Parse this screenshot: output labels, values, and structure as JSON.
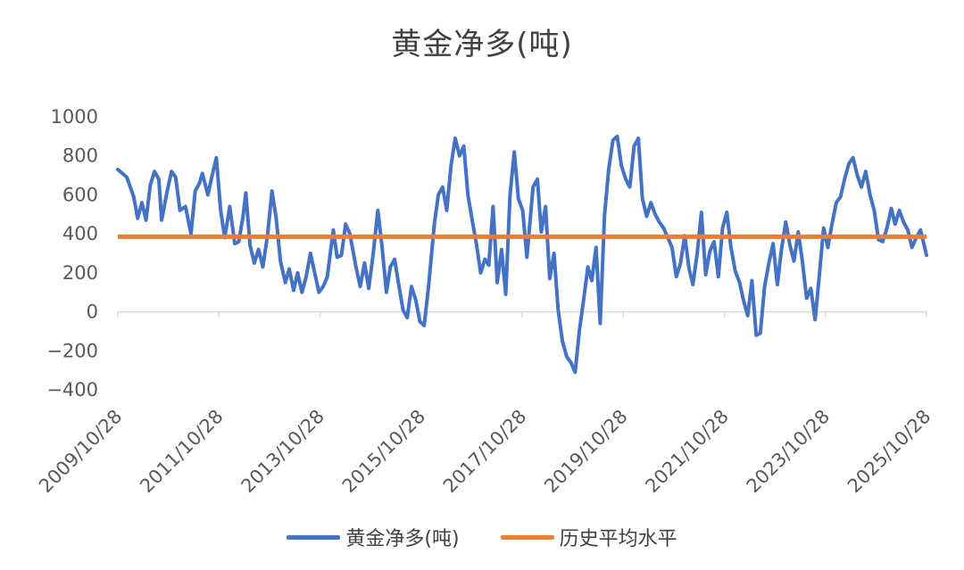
{
  "chart_data": {
    "type": "line",
    "title": "黄金净多(吨)",
    "xlabel": "",
    "ylabel": "",
    "ylim": [
      -400,
      1000
    ],
    "yticks": [
      -400,
      -200,
      0,
      200,
      400,
      600,
      800,
      1000
    ],
    "x_tick_labels": [
      "2009/10/28",
      "2011/10/28",
      "2013/10/28",
      "2015/10/28",
      "2017/10/28",
      "2019/10/28",
      "2021/10/28",
      "2023/10/28",
      "2025/10/28"
    ],
    "grid": false,
    "legend_position": "bottom",
    "series": [
      {
        "name": "黄金净多(吨)",
        "color": "#4472C4",
        "points": [
          [
            "2009/10/28",
            730
          ],
          [
            "2010/01/01",
            690
          ],
          [
            "2010/02/20",
            590
          ],
          [
            "2010/03/20",
            480
          ],
          [
            "2010/04/20",
            560
          ],
          [
            "2010/05/20",
            470
          ],
          [
            "2010/06/20",
            650
          ],
          [
            "2010/07/20",
            720
          ],
          [
            "2010/08/20",
            680
          ],
          [
            "2010/09/10",
            470
          ],
          [
            "2010/10/20",
            620
          ],
          [
            "2010/11/20",
            720
          ],
          [
            "2010/12/20",
            690
          ],
          [
            "2011/01/20",
            520
          ],
          [
            "2011/03/01",
            540
          ],
          [
            "2011/04/10",
            400
          ],
          [
            "2011/05/10",
            620
          ],
          [
            "2011/06/10",
            660
          ],
          [
            "2011/07/01",
            710
          ],
          [
            "2011/08/10",
            600
          ],
          [
            "2011/09/10",
            700
          ],
          [
            "2011/10/10",
            790
          ],
          [
            "2011/11/10",
            520
          ],
          [
            "2011/12/10",
            380
          ],
          [
            "2012/01/15",
            540
          ],
          [
            "2012/02/20",
            350
          ],
          [
            "2012/03/20",
            360
          ],
          [
            "2012/04/20",
            490
          ],
          [
            "2012/05/10",
            610
          ],
          [
            "2012/06/10",
            340
          ],
          [
            "2012/07/10",
            250
          ],
          [
            "2012/08/10",
            320
          ],
          [
            "2012/09/10",
            230
          ],
          [
            "2012/10/15",
            400
          ],
          [
            "2012/11/15",
            620
          ],
          [
            "2012/12/15",
            480
          ],
          [
            "2013/01/15",
            260
          ],
          [
            "2013/02/20",
            150
          ],
          [
            "2013/03/20",
            220
          ],
          [
            "2013/04/20",
            110
          ],
          [
            "2013/05/20",
            200
          ],
          [
            "2013/06/20",
            100
          ],
          [
            "2013/07/20",
            180
          ],
          [
            "2013/08/20",
            300
          ],
          [
            "2013/09/20",
            200
          ],
          [
            "2013/10/20",
            100
          ],
          [
            "2013/11/20",
            130
          ],
          [
            "2013/12/20",
            180
          ],
          [
            "2014/02/01",
            420
          ],
          [
            "2014/03/01",
            280
          ],
          [
            "2014/04/01",
            290
          ],
          [
            "2014/05/01",
            450
          ],
          [
            "2014/06/01",
            400
          ],
          [
            "2014/07/15",
            230
          ],
          [
            "2014/08/15",
            130
          ],
          [
            "2014/09/15",
            250
          ],
          [
            "2014/10/15",
            120
          ],
          [
            "2014/11/15",
            290
          ],
          [
            "2014/12/20",
            520
          ],
          [
            "2015/01/20",
            330
          ],
          [
            "2015/02/20",
            100
          ],
          [
            "2015/03/20",
            230
          ],
          [
            "2015/04/20",
            270
          ],
          [
            "2015/05/20",
            140
          ],
          [
            "2015/06/20",
            10
          ],
          [
            "2015/07/20",
            -30
          ],
          [
            "2015/08/20",
            130
          ],
          [
            "2015/09/20",
            60
          ],
          [
            "2015/10/20",
            -50
          ],
          [
            "2015/11/20",
            -70
          ],
          [
            "2015/12/20",
            120
          ],
          [
            "2016/02/01",
            450
          ],
          [
            "2016/03/01",
            600
          ],
          [
            "2016/04/01",
            640
          ],
          [
            "2016/05/01",
            520
          ],
          [
            "2016/06/01",
            750
          ],
          [
            "2016/07/01",
            890
          ],
          [
            "2016/08/01",
            800
          ],
          [
            "2016/09/01",
            850
          ],
          [
            "2016/10/01",
            600
          ],
          [
            "2016/11/01",
            470
          ],
          [
            "2016/12/01",
            350
          ],
          [
            "2017/01/01",
            200
          ],
          [
            "2017/02/01",
            270
          ],
          [
            "2017/03/01",
            240
          ],
          [
            "2017/04/01",
            540
          ],
          [
            "2017/05/01",
            150
          ],
          [
            "2017/06/01",
            320
          ],
          [
            "2017/07/01",
            90
          ],
          [
            "2017/08/01",
            600
          ],
          [
            "2017/09/01",
            820
          ],
          [
            "2017/10/01",
            580
          ],
          [
            "2017/11/01",
            520
          ],
          [
            "2017/12/01",
            280
          ],
          [
            "2018/01/15",
            640
          ],
          [
            "2018/02/15",
            680
          ],
          [
            "2018/03/15",
            410
          ],
          [
            "2018/04/15",
            540
          ],
          [
            "2018/05/15",
            170
          ],
          [
            "2018/06/15",
            300
          ],
          [
            "2018/07/15",
            10
          ],
          [
            "2018/08/15",
            -150
          ],
          [
            "2018/09/15",
            -230
          ],
          [
            "2018/10/15",
            -260
          ],
          [
            "2018/11/15",
            -310
          ],
          [
            "2018/12/15",
            -100
          ],
          [
            "2019/01/15",
            60
          ],
          [
            "2019/02/15",
            230
          ],
          [
            "2019/03/15",
            160
          ],
          [
            "2019/04/15",
            330
          ],
          [
            "2019/05/15",
            -60
          ],
          [
            "2019/06/15",
            490
          ],
          [
            "2019/07/15",
            730
          ],
          [
            "2019/08/15",
            880
          ],
          [
            "2019/09/15",
            900
          ],
          [
            "2019/10/15",
            750
          ],
          [
            "2019/11/15",
            680
          ],
          [
            "2019/12/15",
            640
          ],
          [
            "2020/01/15",
            850
          ],
          [
            "2020/02/15",
            890
          ],
          [
            "2020/03/15",
            580
          ],
          [
            "2020/04/15",
            490
          ],
          [
            "2020/05/15",
            560
          ],
          [
            "2020/06/15",
            500
          ],
          [
            "2020/07/15",
            460
          ],
          [
            "2020/08/15",
            430
          ],
          [
            "2020/09/15",
            380
          ],
          [
            "2020/10/15",
            330
          ],
          [
            "2020/11/15",
            180
          ],
          [
            "2020/12/15",
            250
          ],
          [
            "2021/01/15",
            390
          ],
          [
            "2021/02/15",
            220
          ],
          [
            "2021/03/15",
            140
          ],
          [
            "2021/04/15",
            300
          ],
          [
            "2021/05/15",
            510
          ],
          [
            "2021/06/15",
            190
          ],
          [
            "2021/07/15",
            310
          ],
          [
            "2021/08/15",
            360
          ],
          [
            "2021/09/15",
            180
          ],
          [
            "2021/10/15",
            430
          ],
          [
            "2021/11/15",
            510
          ],
          [
            "2021/12/15",
            330
          ],
          [
            "2022/01/15",
            210
          ],
          [
            "2022/02/15",
            150
          ],
          [
            "2022/03/15",
            60
          ],
          [
            "2022/04/15",
            -20
          ],
          [
            "2022/05/15",
            160
          ],
          [
            "2022/06/15",
            -120
          ],
          [
            "2022/07/15",
            -110
          ],
          [
            "2022/08/15",
            130
          ],
          [
            "2022/09/15",
            250
          ],
          [
            "2022/10/15",
            350
          ],
          [
            "2022/11/15",
            140
          ],
          [
            "2022/12/15",
            320
          ],
          [
            "2023/01/15",
            460
          ],
          [
            "2023/02/15",
            340
          ],
          [
            "2023/03/15",
            260
          ],
          [
            "2023/04/15",
            410
          ],
          [
            "2023/05/15",
            260
          ],
          [
            "2023/06/15",
            70
          ],
          [
            "2023/07/15",
            120
          ],
          [
            "2023/08/15",
            -40
          ],
          [
            "2023/09/15",
            190
          ],
          [
            "2023/10/15",
            430
          ],
          [
            "2023/11/15",
            330
          ],
          [
            "2023/12/15",
            450
          ],
          [
            "2024/01/15",
            560
          ],
          [
            "2024/02/15",
            590
          ],
          [
            "2024/03/15",
            680
          ],
          [
            "2024/04/15",
            760
          ],
          [
            "2024/05/15",
            790
          ],
          [
            "2024/06/15",
            700
          ],
          [
            "2024/07/15",
            640
          ],
          [
            "2024/08/15",
            720
          ],
          [
            "2024/09/15",
            600
          ],
          [
            "2024/10/15",
            520
          ],
          [
            "2024/11/15",
            370
          ],
          [
            "2024/12/15",
            360
          ],
          [
            "2025/01/15",
            430
          ],
          [
            "2025/02/15",
            530
          ],
          [
            "2025/03/15",
            450
          ],
          [
            "2025/04/15",
            520
          ],
          [
            "2025/05/15",
            460
          ],
          [
            "2025/06/15",
            420
          ],
          [
            "2025/07/15",
            330
          ],
          [
            "2025/08/15",
            380
          ],
          [
            "2025/09/15",
            420
          ],
          [
            "2025/10/28",
            290
          ]
        ]
      },
      {
        "name": "历史平均水平",
        "color": "#ED7D31",
        "constant": 385
      }
    ]
  }
}
